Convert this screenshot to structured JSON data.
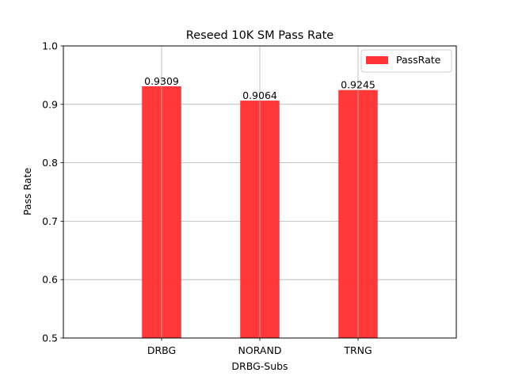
{
  "chart_data": {
    "type": "bar",
    "title": "Reseed 10K SM Pass Rate",
    "xlabel": "DRBG-Subs",
    "ylabel": "Pass Rate",
    "categories": [
      "DRBG",
      "NORAND",
      "TRNG"
    ],
    "series": [
      {
        "name": "PassRate",
        "values": [
          0.9309,
          0.9064,
          0.9245
        ],
        "value_labels": [
          "0.9309",
          "0.9064",
          "0.9245"
        ],
        "color": "#ff3333"
      }
    ],
    "ylim": [
      0.5,
      1.0
    ],
    "yticks": [
      0.5,
      0.6,
      0.7,
      0.8,
      0.9,
      1.0
    ],
    "ytick_labels": [
      "0.5",
      "0.6",
      "0.7",
      "0.8",
      "0.9",
      "1.0"
    ],
    "grid": true,
    "legend_position": "top-right"
  }
}
